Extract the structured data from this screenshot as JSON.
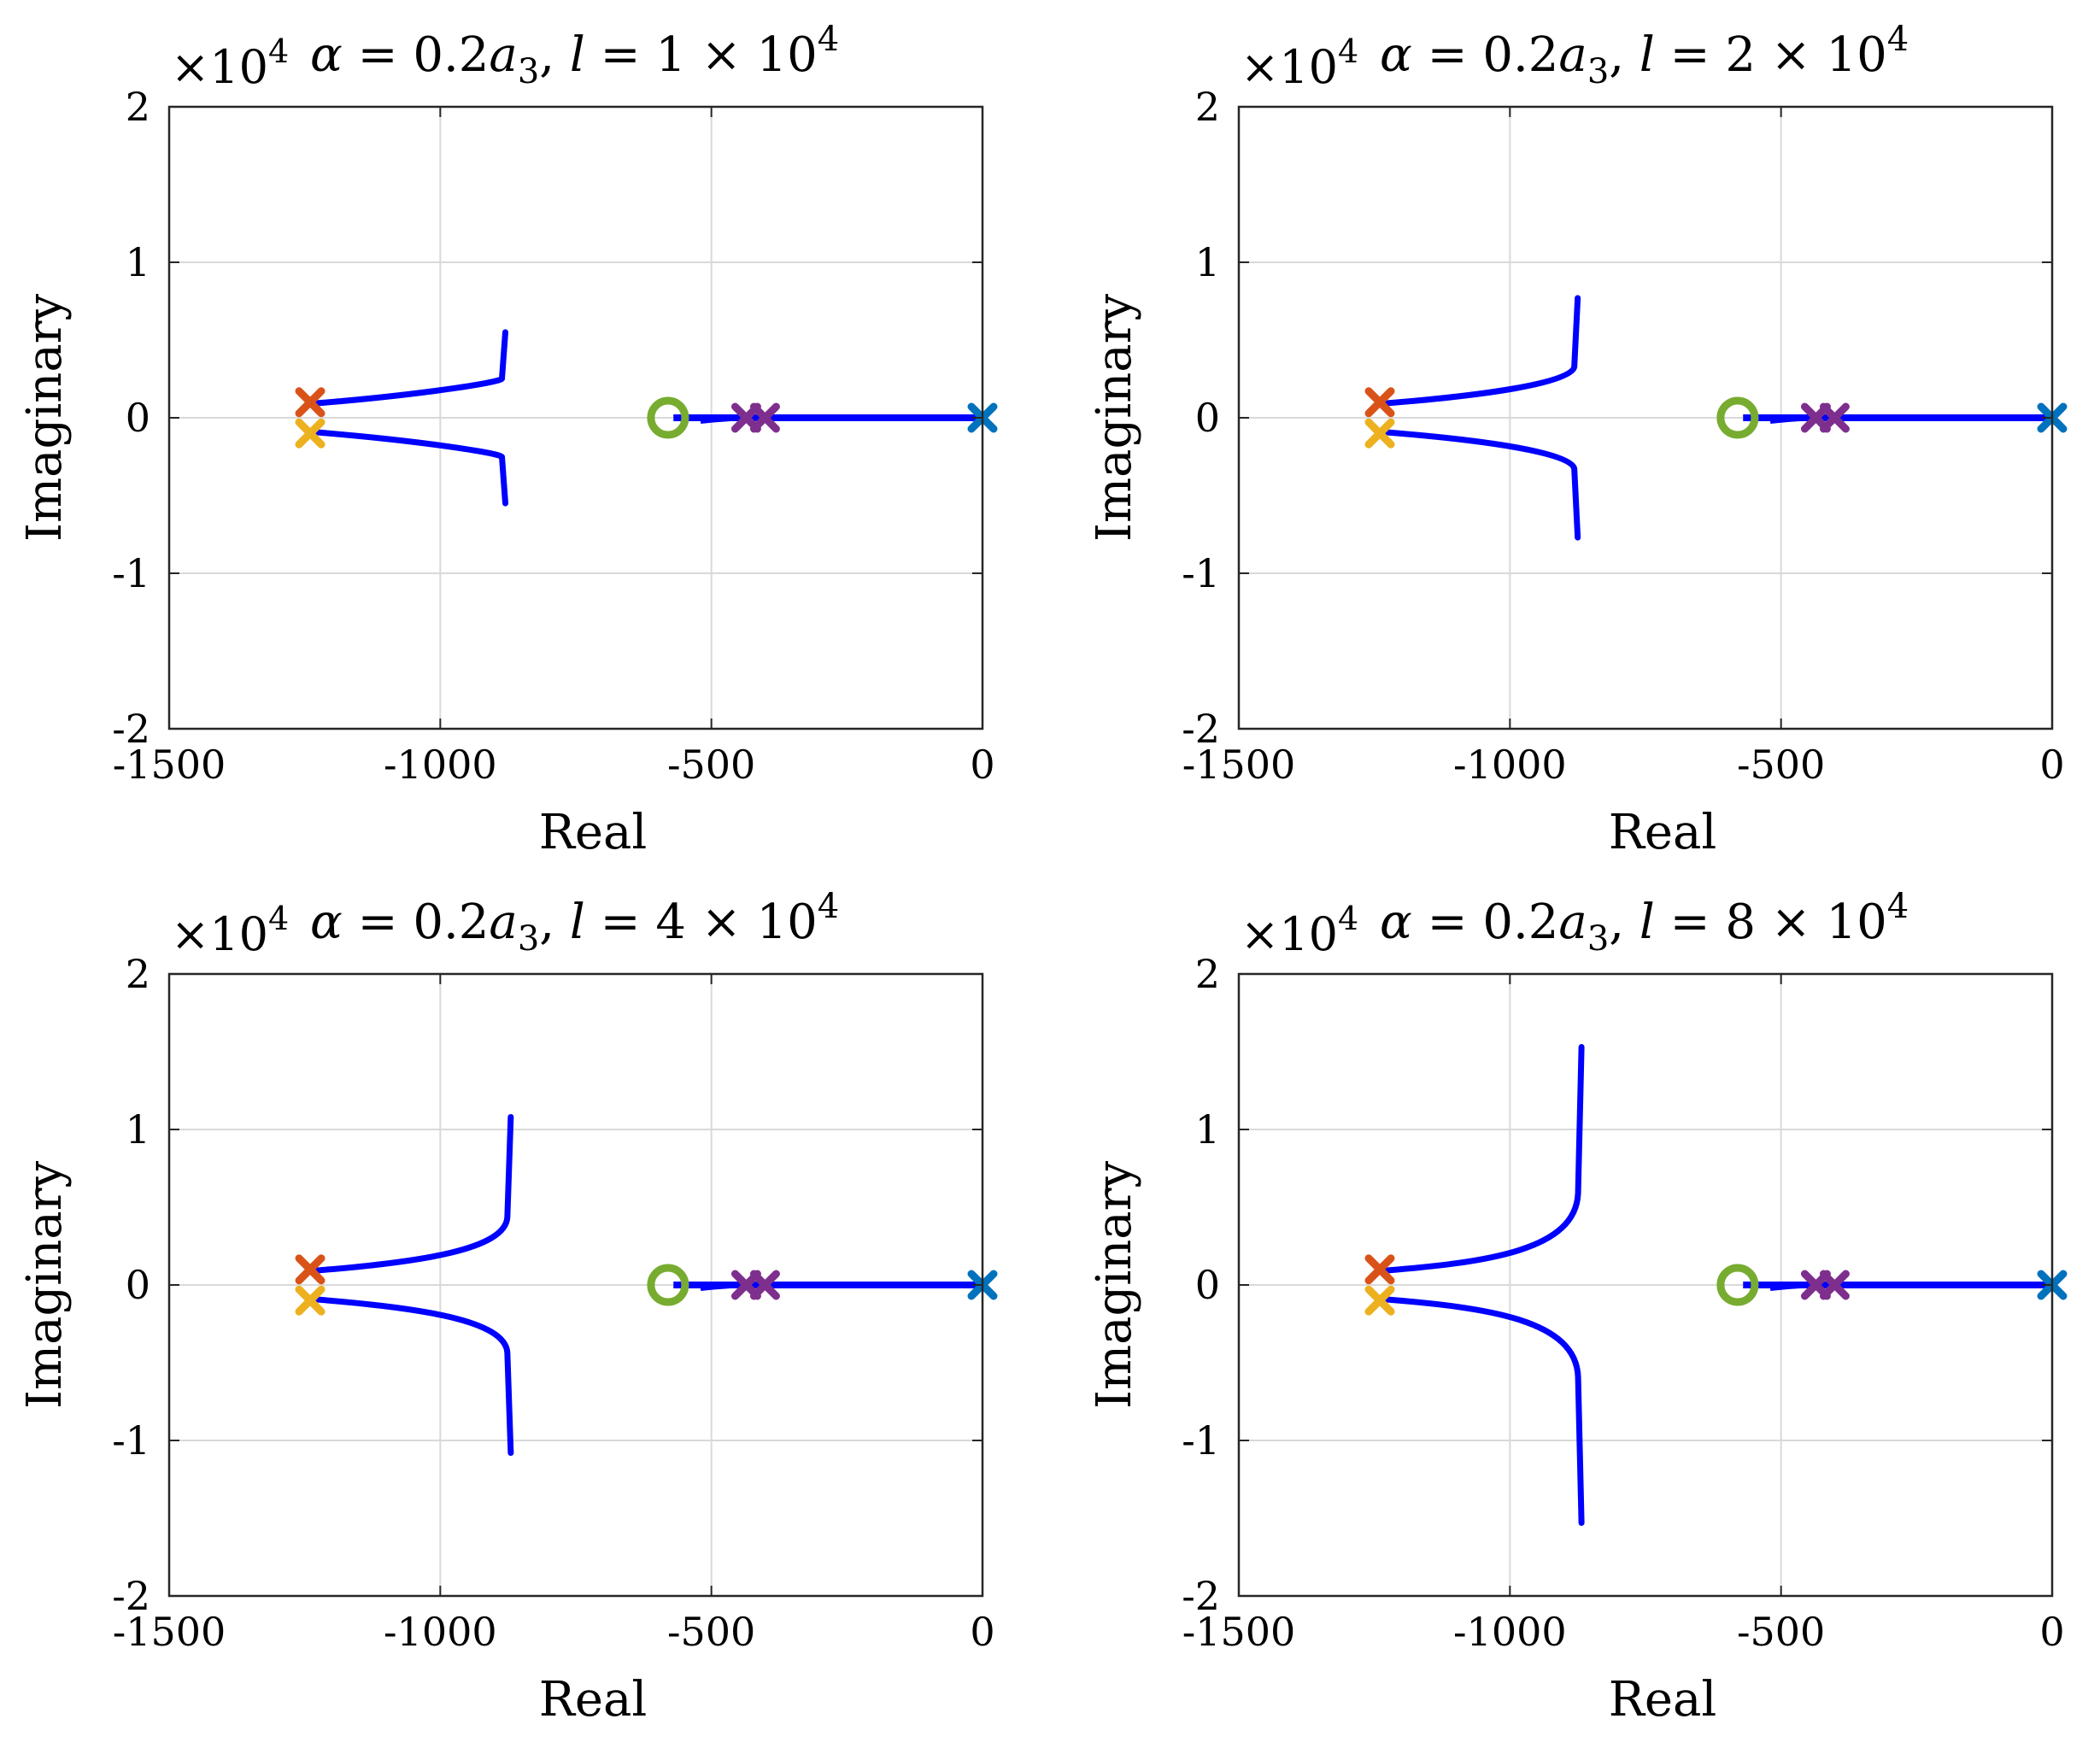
{
  "chart_data": [
    {
      "type": "line",
      "title_parts": [
        "α",
        " = 0.2",
        "a",
        "3",
        ", ",
        "l",
        " = 1 × 10",
        "4"
      ],
      "xlabel": "Real",
      "ylabel": "Imaginary",
      "xlim": [
        -1500,
        0
      ],
      "ylim": [
        -20000,
        20000
      ],
      "x_ticks": [
        "-1500",
        "-1000",
        "-500",
        "0"
      ],
      "y_ticks": [
        "2",
        "1",
        "0",
        "-1",
        "-2"
      ],
      "y_exponent": [
        "×10",
        "4"
      ],
      "grid": true,
      "root_locus": {
        "complex_branch": {
          "start_real": -1240,
          "start_imag": 900,
          "end_real": -880,
          "end_imag": 5500,
          "color": "#0000FF"
        },
        "real_axis_branch": {
          "from": -570,
          "to": 0,
          "color": "#0000FF"
        }
      },
      "poles": [
        {
          "real": -1240,
          "imag": 1000,
          "color": "#D95319"
        },
        {
          "real": -1240,
          "imag": -1000,
          "color": "#EDB120"
        },
        {
          "real": -420,
          "imag": 0,
          "color": "#7E2F8E"
        },
        {
          "real": 0,
          "imag": 0,
          "color": "#0072BD"
        }
      ],
      "zeros": [
        {
          "real": -580,
          "imag": 0,
          "color": "#77AC30"
        }
      ]
    },
    {
      "type": "line",
      "title_parts": [
        "α",
        " = 0.2",
        "a",
        "3",
        ", ",
        "l",
        " = 2 × 10",
        "4"
      ],
      "xlabel": "Real",
      "ylabel": "Imaginary",
      "xlim": [
        -1500,
        0
      ],
      "ylim": [
        -20000,
        20000
      ],
      "x_ticks": [
        "-1500",
        "-1000",
        "-500",
        "0"
      ],
      "y_ticks": [
        "2",
        "1",
        "0",
        "-1",
        "-2"
      ],
      "y_exponent": [
        "×10",
        "4"
      ],
      "grid": true,
      "root_locus": {
        "complex_branch": {
          "start_real": -1240,
          "start_imag": 900,
          "end_real": -875,
          "end_imag": 7700,
          "color": "#0000FF"
        },
        "real_axis_branch": {
          "from": -570,
          "to": 0,
          "color": "#0000FF"
        }
      },
      "poles": [
        {
          "real": -1240,
          "imag": 1000,
          "color": "#D95319"
        },
        {
          "real": -1240,
          "imag": -1000,
          "color": "#EDB120"
        },
        {
          "real": -420,
          "imag": 0,
          "color": "#7E2F8E"
        },
        {
          "real": 0,
          "imag": 0,
          "color": "#0072BD"
        }
      ],
      "zeros": [
        {
          "real": -580,
          "imag": 0,
          "color": "#77AC30"
        }
      ]
    },
    {
      "type": "line",
      "title_parts": [
        "α",
        " = 0.2",
        "a",
        "3",
        ", ",
        "l",
        " = 4 × 10",
        "4"
      ],
      "xlabel": "Real",
      "ylabel": "Imaginary",
      "xlim": [
        -1500,
        0
      ],
      "ylim": [
        -20000,
        20000
      ],
      "x_ticks": [
        "-1500",
        "-1000",
        "-500",
        "0"
      ],
      "y_ticks": [
        "2",
        "1",
        "0",
        "-1",
        "-2"
      ],
      "y_exponent": [
        "×10",
        "4"
      ],
      "grid": true,
      "root_locus": {
        "complex_branch": {
          "start_real": -1240,
          "start_imag": 900,
          "end_real": -870,
          "end_imag": 10800,
          "color": "#0000FF"
        },
        "real_axis_branch": {
          "from": -570,
          "to": 0,
          "color": "#0000FF"
        }
      },
      "poles": [
        {
          "real": -1240,
          "imag": 1000,
          "color": "#D95319"
        },
        {
          "real": -1240,
          "imag": -1000,
          "color": "#EDB120"
        },
        {
          "real": -420,
          "imag": 0,
          "color": "#7E2F8E"
        },
        {
          "real": 0,
          "imag": 0,
          "color": "#0072BD"
        }
      ],
      "zeros": [
        {
          "real": -580,
          "imag": 0,
          "color": "#77AC30"
        }
      ]
    },
    {
      "type": "line",
      "title_parts": [
        "α",
        " = 0.2",
        "a",
        "3",
        ", ",
        "l",
        " = 8 × 10",
        "4"
      ],
      "xlabel": "Real",
      "ylabel": "Imaginary",
      "xlim": [
        -1500,
        0
      ],
      "ylim": [
        -20000,
        20000
      ],
      "x_ticks": [
        "-1500",
        "-1000",
        "-500",
        "0"
      ],
      "y_ticks": [
        "2",
        "1",
        "0",
        "-1",
        "-2"
      ],
      "y_exponent": [
        "×10",
        "4"
      ],
      "grid": true,
      "root_locus": {
        "complex_branch": {
          "start_real": -1240,
          "start_imag": 900,
          "end_real": -868,
          "end_imag": 15300,
          "color": "#0000FF"
        },
        "real_axis_branch": {
          "from": -570,
          "to": 0,
          "color": "#0000FF"
        }
      },
      "poles": [
        {
          "real": -1240,
          "imag": 1000,
          "color": "#D95319"
        },
        {
          "real": -1240,
          "imag": -1000,
          "color": "#EDB120"
        },
        {
          "real": -420,
          "imag": 0,
          "color": "#7E2F8E"
        },
        {
          "real": 0,
          "imag": 0,
          "color": "#0072BD"
        }
      ],
      "zeros": [
        {
          "real": -580,
          "imag": 0,
          "color": "#77AC30"
        }
      ]
    }
  ]
}
